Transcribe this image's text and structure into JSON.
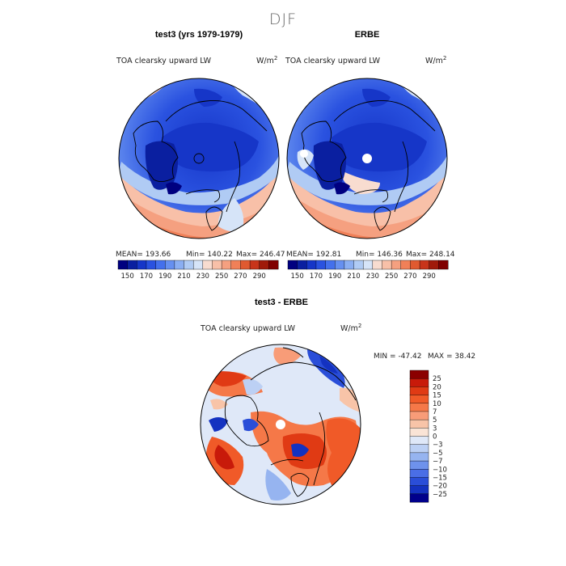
{
  "main_title": "DJF",
  "panels": {
    "model": {
      "title": "test3 (yrs 1979-1979)",
      "variable": "TOA clearsky upward LW",
      "units_base": "W/m",
      "units_exp": "2",
      "stats": {
        "mean_label": "MEAN=",
        "mean": "193.66",
        "min_label": "Min=",
        "min": "140.22",
        "max_label": "Max=",
        "max": "246.47"
      }
    },
    "obs": {
      "title": "ERBE",
      "variable": "TOA clearsky upward LW",
      "units_base": "W/m",
      "units_exp": "2",
      "stats": {
        "mean_label": "MEAN=",
        "mean": "192.81",
        "min_label": "Min=",
        "min": "146.36",
        "max_label": "Max=",
        "max": "248.14"
      }
    },
    "diff": {
      "title": "test3 - ERBE",
      "variable": "TOA clearsky upward LW",
      "units_base": "W/m",
      "units_exp": "2",
      "stats": {
        "min_label": "MIN =",
        "min": "-47.42",
        "max_label": "MAX =",
        "max": "38.42"
      }
    }
  },
  "colorbar_top": {
    "colors": [
      "#000080",
      "#0a1fa0",
      "#1636c8",
      "#2a52e0",
      "#4470ec",
      "#6690f0",
      "#8aaef2",
      "#b0cbf4",
      "#d6e4f8",
      "#f8dcd0",
      "#f8c0a8",
      "#f5a080",
      "#f08058",
      "#e05a30",
      "#c8341a",
      "#a01a0a",
      "#800000"
    ],
    "tick_labels": [
      "150",
      "170",
      "190",
      "210",
      "230",
      "250",
      "270",
      "290"
    ]
  },
  "colorbar_diff": {
    "colors": [
      "#8b0000",
      "#c81a0a",
      "#e03a14",
      "#f05a28",
      "#f57848",
      "#f89c78",
      "#f8c4a8",
      "#fae4d6",
      "#dfe8f8",
      "#bcd0f4",
      "#96b4f0",
      "#6e92ec",
      "#4a6ee6",
      "#2a4ed8",
      "#1432c0",
      "#00008b"
    ],
    "tick_labels": [
      "25",
      "20",
      "15",
      "10",
      "7",
      "5",
      "3",
      "0",
      "−3",
      "−5",
      "−7",
      "−10",
      "−15",
      "−20",
      "−25"
    ]
  },
  "chart_data": [
    {
      "type": "heatmap",
      "title": "test3 (yrs 1979-1979)",
      "variable": "TOA clearsky upward LW",
      "units": "W/m2",
      "projection": "north-polar-stereographic",
      "season": "DJF",
      "mean": 193.66,
      "min": 140.22,
      "max": 246.47,
      "levels": [
        150,
        160,
        170,
        180,
        190,
        200,
        210,
        220,
        230,
        240,
        250,
        260,
        270,
        280,
        290
      ]
    },
    {
      "type": "heatmap",
      "title": "ERBE",
      "variable": "TOA clearsky upward LW",
      "units": "W/m2",
      "projection": "north-polar-stereographic",
      "season": "DJF",
      "mean": 192.81,
      "min": 146.36,
      "max": 248.14,
      "levels": [
        150,
        160,
        170,
        180,
        190,
        200,
        210,
        220,
        230,
        240,
        250,
        260,
        270,
        280,
        290
      ]
    },
    {
      "type": "heatmap",
      "title": "test3 - ERBE",
      "variable": "TOA clearsky upward LW",
      "units": "W/m2",
      "projection": "north-polar-stereographic",
      "season": "DJF",
      "min": -47.42,
      "max": 38.42,
      "levels": [
        -25,
        -20,
        -15,
        -10,
        -7,
        -5,
        -3,
        0,
        3,
        5,
        7,
        10,
        15,
        20,
        25
      ]
    }
  ]
}
